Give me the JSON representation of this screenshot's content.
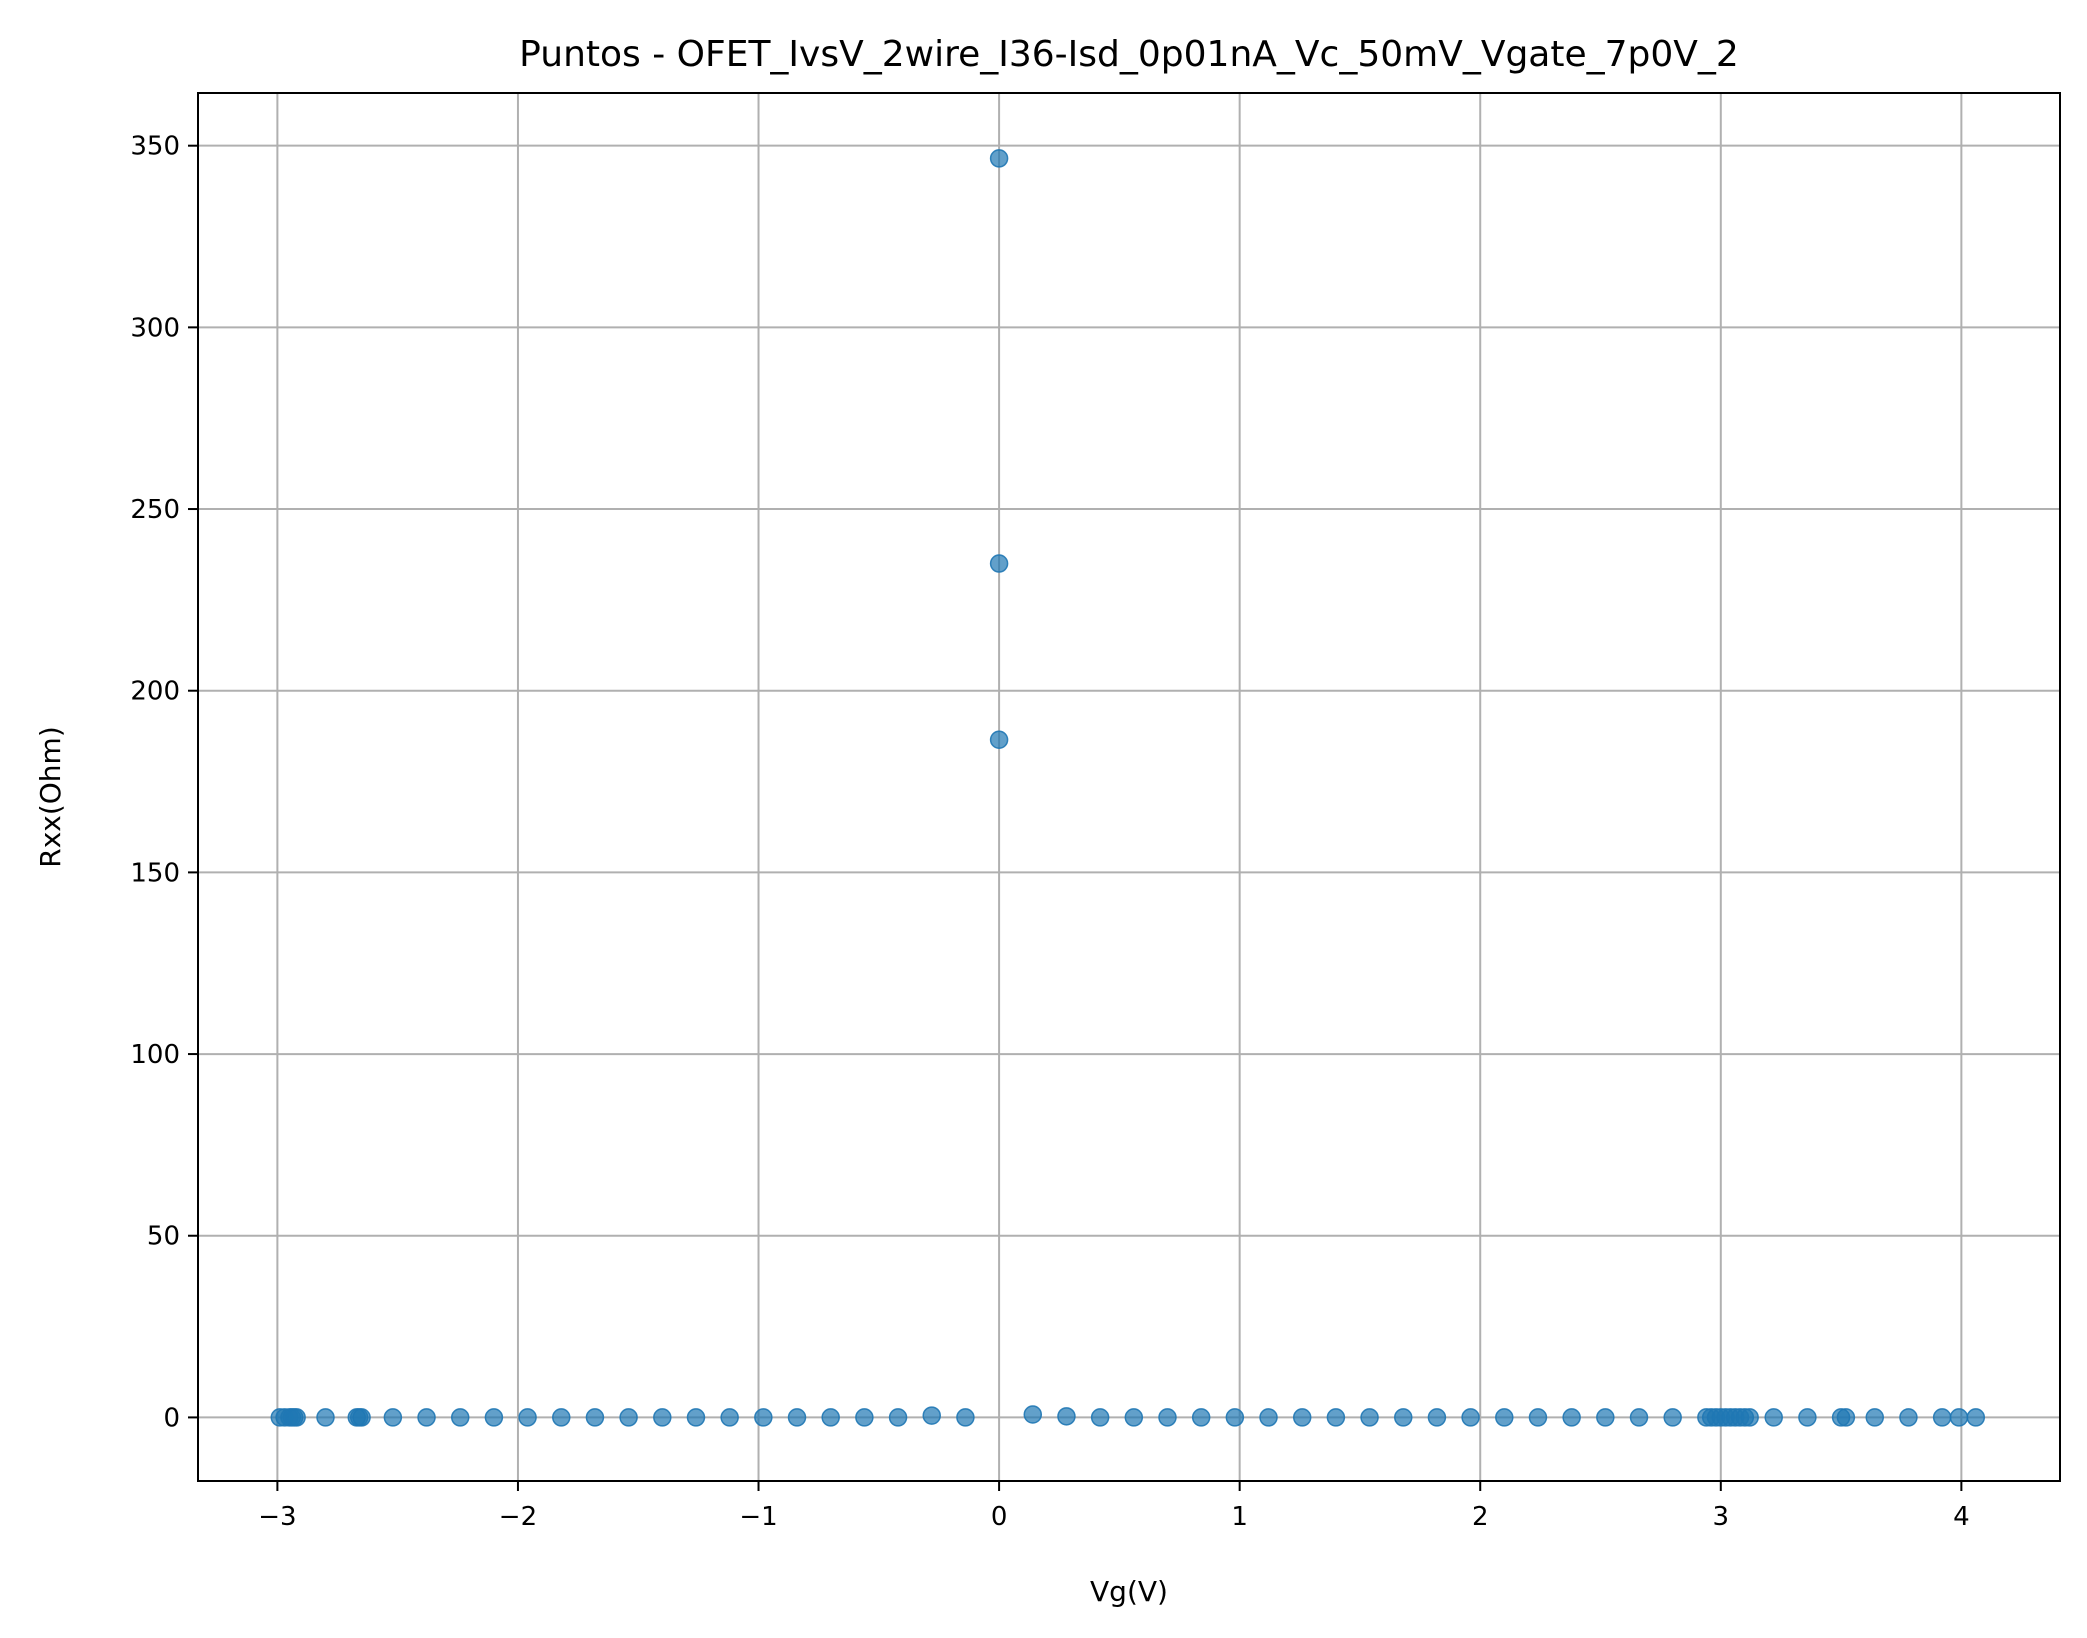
{
  "chart_data": {
    "type": "scatter",
    "title": "Puntos - OFET_IvsV_2wire_I36-Isd_0p01nA_Vc_50mV_Vgate_7p0V_2",
    "xlabel": "Vg(V)",
    "ylabel": "Rxx(Ohm)",
    "xlim": [
      -3.33,
      4.41
    ],
    "ylim": [
      -17.5,
      364.5
    ],
    "xticks": [
      -3,
      -2,
      -1,
      0,
      1,
      2,
      3,
      4
    ],
    "xtick_labels": [
      "−3",
      "−2",
      "−1",
      "0",
      "1",
      "2",
      "3",
      "4"
    ],
    "yticks": [
      0,
      50,
      100,
      150,
      200,
      250,
      300,
      350
    ],
    "ytick_labels": [
      "0",
      "50",
      "100",
      "150",
      "200",
      "250",
      "300",
      "350"
    ],
    "grid": true,
    "point_color": "#1f77b4",
    "series": [
      {
        "x": [
          -2.99,
          -2.97,
          -2.95,
          -2.94,
          -2.93,
          -2.92,
          -2.8,
          -2.67,
          -2.66,
          -2.65,
          -2.52,
          -2.38,
          -2.24,
          -2.1,
          -1.96,
          -1.82,
          -1.68,
          -1.54,
          -1.4,
          -1.26,
          -1.12,
          -0.98,
          -0.84,
          -0.7,
          -0.56,
          -0.42,
          -0.28,
          -0.14,
          0.0,
          0.0,
          0.0,
          0.14,
          0.28,
          0.42,
          0.56,
          0.7,
          0.84,
          0.98,
          1.12,
          1.26,
          1.4,
          1.54,
          1.68,
          1.82,
          1.96,
          2.1,
          2.24,
          2.38,
          2.52,
          2.66,
          2.8,
          2.94,
          2.96,
          2.98,
          3.0,
          3.02,
          3.04,
          3.06,
          3.08,
          3.1,
          3.12,
          3.22,
          3.36,
          3.5,
          3.52,
          3.64,
          3.78,
          3.92,
          3.99,
          4.06
        ],
        "y": [
          0,
          0,
          0,
          0,
          0,
          0,
          0,
          0,
          0,
          0,
          0,
          0,
          0,
          0,
          0,
          0,
          0,
          0,
          0,
          0,
          0,
          0,
          0,
          0,
          0,
          0,
          0.5,
          0,
          346.5,
          235,
          186.5,
          0.8,
          0.3,
          0,
          0,
          0,
          0,
          0,
          0,
          0,
          0,
          0,
          0,
          0,
          0,
          0,
          0,
          0,
          0,
          0,
          0,
          0,
          0,
          0,
          0,
          0,
          0,
          0,
          0,
          0,
          0,
          0,
          0,
          0,
          0,
          0,
          0,
          0,
          0,
          0
        ]
      }
    ]
  }
}
